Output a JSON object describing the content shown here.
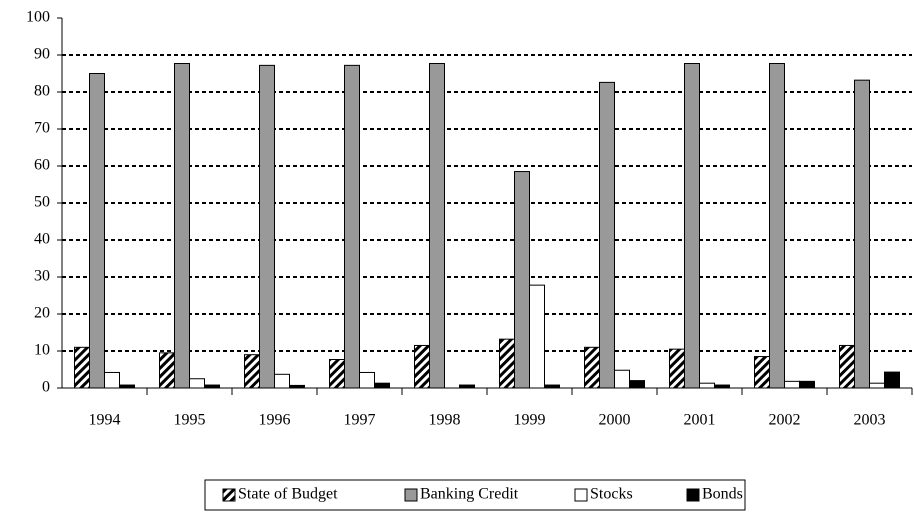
{
  "chart_data": {
    "type": "bar",
    "categories": [
      "1994",
      "1995",
      "1996",
      "1997",
      "1998",
      "1999",
      "2000",
      "2001",
      "2002",
      "2003"
    ],
    "series": [
      {
        "name": "State of Budget",
        "color": "#000000",
        "hatch": true,
        "values": [
          11,
          9.5,
          9,
          7.7,
          11.5,
          13.2,
          11,
          10.5,
          8.5,
          11.5
        ]
      },
      {
        "name": "Banking Credit",
        "color": "#999999",
        "values": [
          85,
          87.7,
          87.2,
          87.2,
          87.7,
          58.5,
          82.6,
          87.7,
          87.7,
          83.2
        ]
      },
      {
        "name": "Stocks",
        "color": "#ffffff",
        "values": [
          4.2,
          2.5,
          3.7,
          4.2,
          0,
          27.8,
          4.8,
          1.3,
          1.8,
          1.3
        ]
      },
      {
        "name": "Bonds",
        "color": "#000000",
        "values": [
          0.8,
          0.8,
          0.7,
          1.3,
          0.8,
          0.8,
          2,
          0.8,
          1.8,
          4.3
        ]
      }
    ],
    "ylim": [
      0,
      100
    ],
    "yticks": [
      0,
      10,
      20,
      30,
      40,
      50,
      60,
      70,
      80,
      90,
      100
    ],
    "grid": true,
    "legend": "bottom"
  }
}
